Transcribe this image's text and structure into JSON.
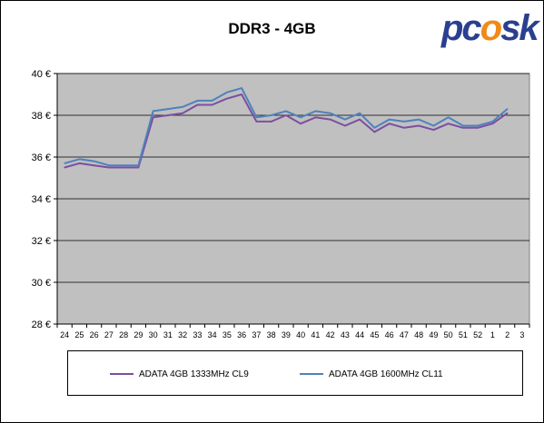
{
  "logo_text": "pcosk",
  "chart_data": {
    "type": "line",
    "title": "DDR3 - 4GB",
    "xlabel": "",
    "ylabel": "",
    "categories": [
      "24",
      "25",
      "26",
      "27",
      "28",
      "29",
      "30",
      "31",
      "32",
      "33",
      "34",
      "35",
      "36",
      "37",
      "38",
      "39",
      "40",
      "41",
      "42",
      "43",
      "44",
      "45",
      "46",
      "47",
      "48",
      "49",
      "50",
      "51",
      "52",
      "1",
      "2",
      "3"
    ],
    "ylim": [
      28,
      40
    ],
    "yticks": [
      28,
      30,
      32,
      34,
      36,
      38,
      40
    ],
    "ytick_labels": [
      "28 €",
      "30 €",
      "32 €",
      "34 €",
      "36 €",
      "38 €",
      "40 €"
    ],
    "grid": true,
    "plot_background": "#c0c0c0",
    "legend_position": "bottom",
    "series": [
      {
        "name": "ADATA 4GB 1333MHz CL9",
        "color": "#7b4fa0",
        "values": [
          35.5,
          35.7,
          35.6,
          35.5,
          35.5,
          35.5,
          37.9,
          38.0,
          38.1,
          38.5,
          38.5,
          38.8,
          39.0,
          37.7,
          37.7,
          38.0,
          37.6,
          37.9,
          37.8,
          37.5,
          37.8,
          37.2,
          37.6,
          37.4,
          37.5,
          37.3,
          37.6,
          37.4,
          37.4,
          37.6,
          38.1,
          null
        ]
      },
      {
        "name": "ADATA 4GB 1600MHz CL11",
        "color": "#4f81bd",
        "values": [
          35.7,
          35.9,
          35.8,
          35.6,
          35.6,
          35.6,
          38.2,
          38.3,
          38.4,
          38.7,
          38.7,
          39.1,
          39.3,
          37.9,
          38.0,
          38.2,
          37.9,
          38.2,
          38.1,
          37.8,
          38.1,
          37.4,
          37.8,
          37.7,
          37.8,
          37.5,
          37.9,
          37.5,
          37.5,
          37.7,
          38.3,
          null
        ]
      }
    ]
  }
}
